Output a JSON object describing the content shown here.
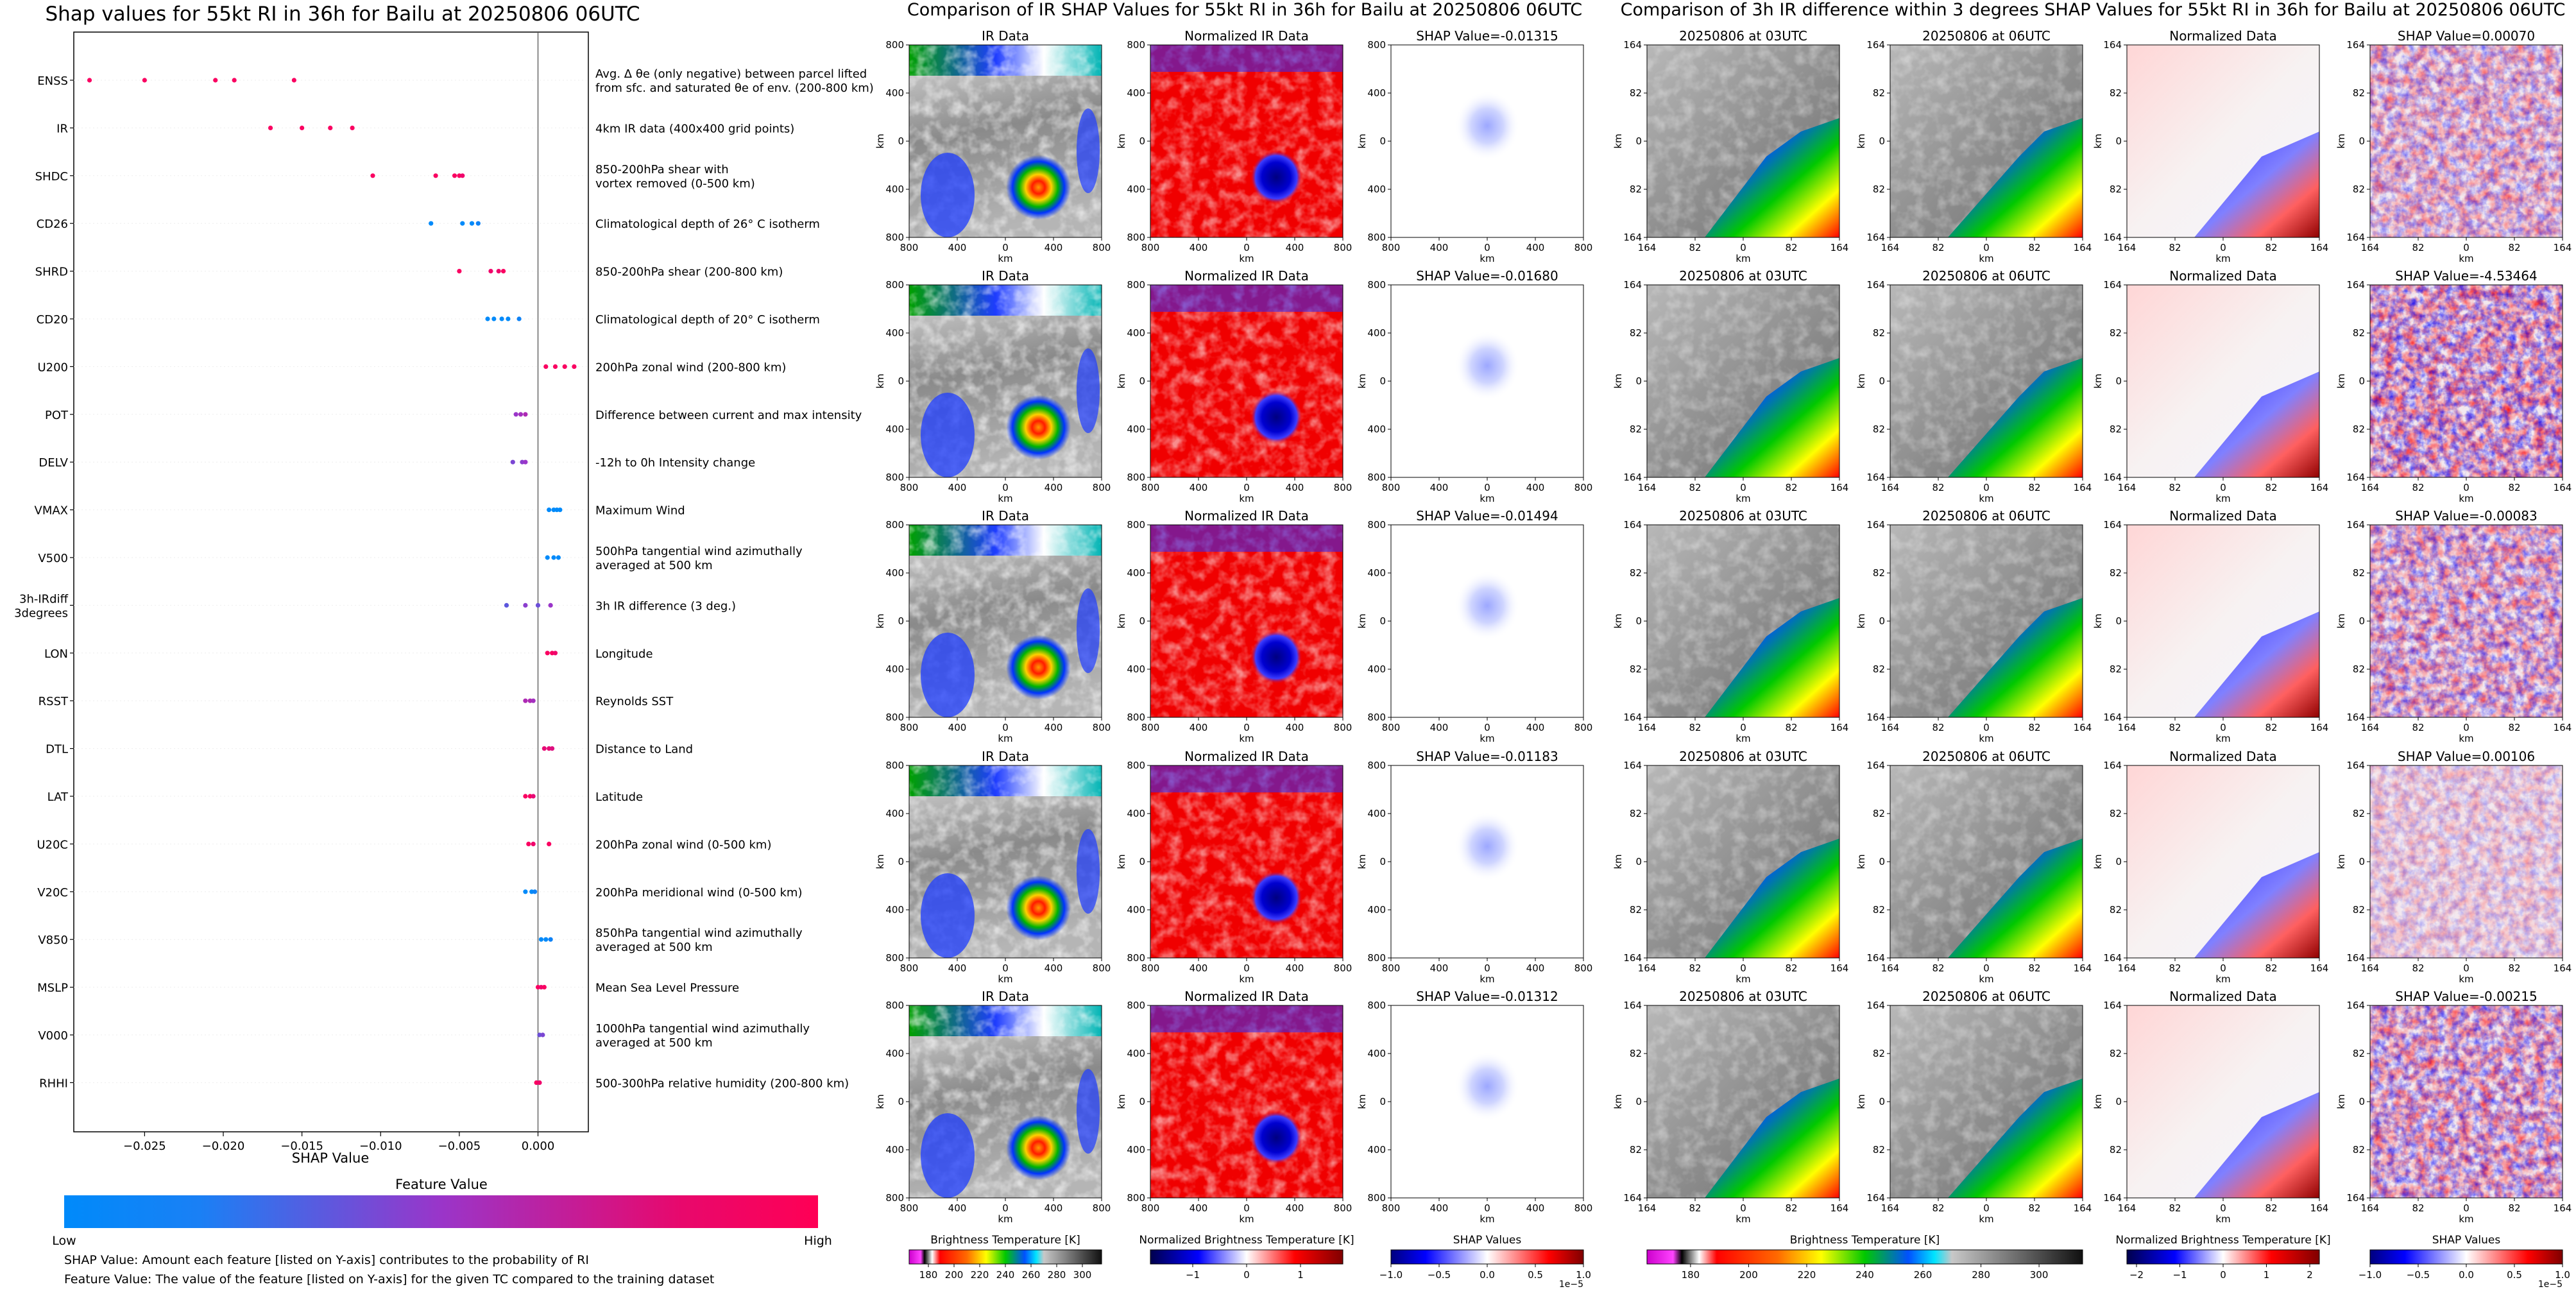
{
  "left_panel": {
    "title": "Shap values for 55kt RI in 36h for Bailu at 20250806 06UTC",
    "xlabel": "SHAP Value",
    "x_ticks": [
      -0.025,
      -0.02,
      -0.015,
      -0.01,
      -0.005,
      0.0
    ],
    "x_tick_labels": [
      "−0.025",
      "−0.020",
      "−0.015",
      "−0.010",
      "−0.005",
      "0.000"
    ],
    "xlim": [
      -0.0295,
      0.0032
    ],
    "colorbar_title": "Feature Value",
    "colorbar_low": "Low",
    "colorbar_high": "High",
    "notes": [
      "SHAP Value: Amount each feature [listed on Y-axis] contributes to the probability of RI",
      "Feature Value: The value of the feature [listed on Y-axis] for the given TC compared to the training dataset"
    ]
  },
  "chart_data": [
    {
      "type": "scatter",
      "title": "Shap values for 55kt RI in 36h for Bailu at 20250806 06UTC",
      "xlabel": "SHAP Value",
      "xlim": [
        -0.0295,
        0.0032
      ],
      "colors": {
        "low": "#008afa",
        "mid": "#9a35c9",
        "high": "#fa0061"
      },
      "features": [
        {
          "name": "ENSS",
          "desc": "Avg. Δ θe (only negative) between parcel lifted\nfrom sfc. and saturated θe of env. (200-800 km)",
          "points": [
            [
              -0.0285,
              1.0
            ],
            [
              -0.025,
              1.0
            ],
            [
              -0.0205,
              1.0
            ],
            [
              -0.0193,
              1.0
            ],
            [
              -0.0155,
              1.0
            ]
          ]
        },
        {
          "name": "IR",
          "desc": "4km IR data (400x400 grid points)",
          "points": [
            [
              -0.017,
              1.0
            ],
            [
              -0.015,
              1.0
            ],
            [
              -0.0132,
              1.0
            ],
            [
              -0.0118,
              1.0
            ]
          ]
        },
        {
          "name": "SHDC",
          "desc": "850-200hPa shear with\nvortex removed (0-500 km)",
          "points": [
            [
              -0.0105,
              1.0
            ],
            [
              -0.0065,
              1.0
            ],
            [
              -0.0053,
              1.0
            ],
            [
              -0.005,
              1.0
            ],
            [
              -0.0048,
              0.95
            ]
          ]
        },
        {
          "name": "CD26",
          "desc": "Climatological depth of 26° C isotherm",
          "points": [
            [
              -0.0068,
              0.0
            ],
            [
              -0.0048,
              0.0
            ],
            [
              -0.0042,
              0.0
            ],
            [
              -0.0038,
              0.05
            ]
          ]
        },
        {
          "name": "SHRD",
          "desc": "850-200hPa shear (200-800 km)",
          "points": [
            [
              -0.005,
              1.0
            ],
            [
              -0.003,
              0.95
            ],
            [
              -0.0025,
              0.95
            ],
            [
              -0.0022,
              1.0
            ]
          ]
        },
        {
          "name": "CD20",
          "desc": "Climatological depth of 20° C isotherm",
          "points": [
            [
              -0.0032,
              0.0
            ],
            [
              -0.0028,
              0.0
            ],
            [
              -0.0023,
              0.0
            ],
            [
              -0.0019,
              0.0
            ],
            [
              -0.0012,
              0.05
            ]
          ]
        },
        {
          "name": "U200",
          "desc": "200hPa zonal wind (200-800 km)",
          "points": [
            [
              0.0005,
              1.0
            ],
            [
              0.0011,
              1.0
            ],
            [
              0.0017,
              1.0
            ],
            [
              0.0023,
              1.0
            ]
          ]
        },
        {
          "name": "POT",
          "desc": "Difference between current and max intensity",
          "points": [
            [
              -0.0014,
              0.5
            ],
            [
              -0.0011,
              0.55
            ],
            [
              -0.0008,
              0.6
            ]
          ]
        },
        {
          "name": "DELV",
          "desc": "-12h to 0h Intensity change",
          "points": [
            [
              -0.0016,
              0.4
            ],
            [
              -0.001,
              0.45
            ],
            [
              -0.0008,
              0.5
            ]
          ]
        },
        {
          "name": "VMAX",
          "desc": "Maximum Wind",
          "points": [
            [
              0.0007,
              0.0
            ],
            [
              0.001,
              0.0
            ],
            [
              0.0012,
              0.0
            ],
            [
              0.0014,
              0.0
            ]
          ]
        },
        {
          "name": "V500",
          "desc": "500hPa tangential wind azimuthally\naveraged at 500 km",
          "points": [
            [
              0.0006,
              0.0
            ],
            [
              0.001,
              0.0
            ],
            [
              0.0013,
              0.0
            ]
          ]
        },
        {
          "name": "3h-IRdiff\n3degrees",
          "desc": "3h IR difference (3 deg.)",
          "points": [
            [
              -0.002,
              0.3
            ],
            [
              -0.0008,
              0.45
            ],
            [
              0.0,
              0.35
            ],
            [
              0.0008,
              0.5
            ]
          ]
        },
        {
          "name": "LON",
          "desc": "Longitude",
          "points": [
            [
              0.0006,
              1.0
            ],
            [
              0.0009,
              1.0
            ],
            [
              0.0011,
              0.95
            ]
          ]
        },
        {
          "name": "RSST",
          "desc": "Reynolds SST",
          "points": [
            [
              -0.0008,
              0.6
            ],
            [
              -0.0005,
              0.6
            ],
            [
              -0.0003,
              0.55
            ]
          ]
        },
        {
          "name": "DTL",
          "desc": "Distance to Land",
          "points": [
            [
              0.0004,
              0.9
            ],
            [
              0.0007,
              0.9
            ],
            [
              0.0009,
              0.85
            ]
          ]
        },
        {
          "name": "LAT",
          "desc": "Latitude",
          "points": [
            [
              -0.0008,
              1.0
            ],
            [
              -0.0005,
              1.0
            ],
            [
              -0.0003,
              0.9
            ]
          ]
        },
        {
          "name": "U20C",
          "desc": "200hPa zonal wind (0-500 km)",
          "points": [
            [
              -0.0006,
              1.0
            ],
            [
              -0.0003,
              0.95
            ],
            [
              0.0007,
              1.0
            ]
          ]
        },
        {
          "name": "V20C",
          "desc": "200hPa meridional wind (0-500 km)",
          "points": [
            [
              -0.0008,
              0.0
            ],
            [
              -0.0004,
              0.0
            ],
            [
              -0.0002,
              0.05
            ]
          ]
        },
        {
          "name": "V850",
          "desc": "850hPa tangential wind azimuthally\naveraged at 500 km",
          "points": [
            [
              0.0002,
              0.0
            ],
            [
              0.0005,
              0.0
            ],
            [
              0.0008,
              0.05
            ]
          ]
        },
        {
          "name": "MSLP",
          "desc": "Mean Sea Level Pressure",
          "points": [
            [
              0.0,
              1.0
            ],
            [
              0.0002,
              0.95
            ],
            [
              0.0004,
              1.0
            ]
          ]
        },
        {
          "name": "V000",
          "desc": "1000hPa tangential wind azimuthally\naveraged at 500 km",
          "points": [
            [
              0.0001,
              0.35
            ],
            [
              0.0003,
              0.4
            ]
          ]
        },
        {
          "name": "RHHI",
          "desc": "500-300hPa relative humidity (200-800 km)",
          "points": [
            [
              -0.0001,
              1.0
            ],
            [
              0.0001,
              0.95
            ]
          ]
        }
      ]
    },
    {
      "type": "heatmap",
      "title": "Comparison of IR SHAP Values for 55kt RI in 36h for Bailu at 20250806 06UTC",
      "columns": [
        "IR Data",
        "Normalized IR Data"
      ],
      "shap_titles": [
        "SHAP Value=-0.01315",
        "SHAP Value=-0.01680",
        "SHAP Value=-0.01494",
        "SHAP Value=-0.01183",
        "SHAP Value=-0.01312"
      ],
      "axis_ticks": [
        "800",
        "400",
        "0",
        "400",
        "800"
      ],
      "axis_label": "km",
      "colorbars": [
        {
          "label": "Brightness Temperature [K]",
          "ticks": [
            "180",
            "200",
            "220",
            "240",
            "260",
            "280",
            "300"
          ]
        },
        {
          "label": "Normalized Brightness Temperature [K]",
          "ticks": [
            "−1",
            "0",
            "1"
          ]
        },
        {
          "label": "SHAP Values",
          "ticks": [
            "−1.0",
            "−0.5",
            "0.0",
            "0.5",
            "1.0"
          ],
          "offset": "1e−5"
        }
      ]
    },
    {
      "type": "heatmap",
      "title": "Comparison of 3h IR difference within 3 degrees SHAP Values for 55kt RI in 36h for Bailu at 20250806 06UTC",
      "columns": [
        "20250806 at 03UTC",
        "20250806 at 06UTC",
        "Normalized Data"
      ],
      "shap_titles": [
        "SHAP Value=0.00070",
        "SHAP Value=-4.53464",
        "SHAP Value=-0.00083",
        "SHAP Value=0.00106",
        "SHAP Value=-0.00215"
      ],
      "axis_ticks": [
        "164",
        "82",
        "0",
        "82",
        "164"
      ],
      "axis_label": "km",
      "colorbars": [
        {
          "label": "Brightness Temperature [K]",
          "ticks": [
            "180",
            "200",
            "220",
            "240",
            "260",
            "280",
            "300"
          ]
        },
        {
          "label": "Normalized Brightness Temperature [K]",
          "ticks": [
            "−2",
            "−1",
            "0",
            "1",
            "2"
          ]
        },
        {
          "label": "SHAP Values",
          "ticks": [
            "−1.0",
            "−0.5",
            "0.0",
            "0.5",
            "1.0"
          ],
          "offset": "1e−5"
        }
      ]
    }
  ]
}
